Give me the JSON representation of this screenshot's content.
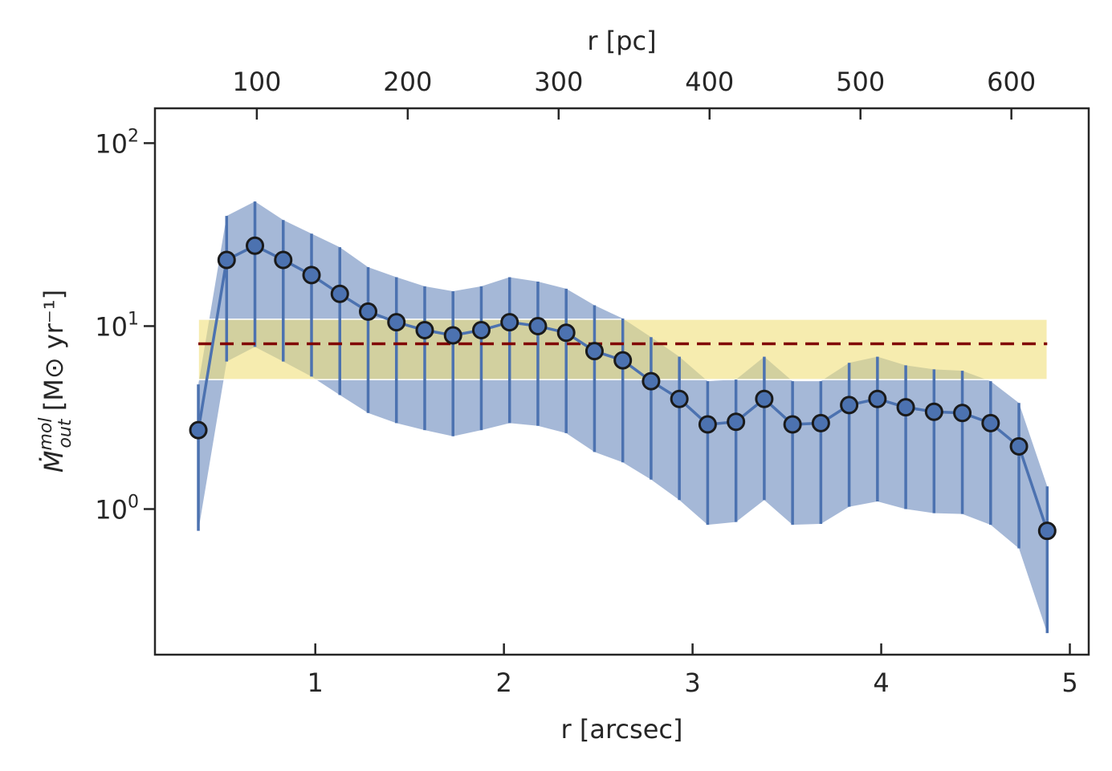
{
  "chart_data": {
    "type": "line",
    "xlabel": "r [arcsec]",
    "xlabel_top": "r [pc]",
    "ylabel_text": "Ṁ",
    "ylabel_sup": "mol",
    "ylabel_sub": "out",
    "ylabel_unit": " [M⊙ yr⁻¹]",
    "yscale": "log",
    "xlim": [
      0.15,
      5.1
    ],
    "ylim": [
      0.16,
      155
    ],
    "x_ticks": [
      {
        "value": 1,
        "label": "1"
      },
      {
        "value": 2,
        "label": "2"
      },
      {
        "value": 3,
        "label": "3"
      },
      {
        "value": 4,
        "label": "4"
      },
      {
        "value": 5,
        "label": "5"
      }
    ],
    "x_top_ticks": [
      {
        "value": 0.69,
        "label": "100"
      },
      {
        "value": 1.49,
        "label": "200"
      },
      {
        "value": 2.29,
        "label": "300"
      },
      {
        "value": 3.09,
        "label": "400"
      },
      {
        "value": 3.89,
        "label": "500"
      },
      {
        "value": 4.69,
        "label": "600"
      }
    ],
    "y_ticks": [
      {
        "value": 1,
        "base": "10",
        "exp": "0"
      },
      {
        "value": 10,
        "base": "10",
        "exp": "1"
      },
      {
        "value": 100,
        "base": "10",
        "exp": "2"
      }
    ],
    "series": [
      {
        "color": "#4c72b0",
        "x": [
          0.38,
          0.53,
          0.68,
          0.83,
          0.98,
          1.13,
          1.28,
          1.43,
          1.58,
          1.73,
          1.88,
          2.03,
          2.18,
          2.33,
          2.48,
          2.63,
          2.78,
          2.93,
          3.08,
          3.23,
          3.38,
          3.53,
          3.68,
          3.83,
          3.98,
          4.13,
          4.28,
          4.43,
          4.58,
          4.73,
          4.88
        ],
        "y": [
          2.7,
          23,
          27.5,
          23,
          19,
          15,
          12,
          10.5,
          9.5,
          8.9,
          9.5,
          10.5,
          10,
          9.2,
          7.3,
          6.5,
          5.0,
          4.0,
          2.9,
          3.0,
          4.0,
          2.9,
          2.95,
          3.7,
          4.0,
          3.6,
          3.4,
          3.35,
          2.95,
          2.2,
          0.76
        ],
        "y_upper": [
          4.8,
          40,
          48,
          38,
          32,
          27,
          21,
          18.5,
          16.5,
          15.5,
          16.5,
          18.5,
          17.5,
          16,
          13,
          11,
          8.7,
          6.8,
          5.0,
          5.1,
          6.8,
          5.0,
          5.0,
          6.3,
          6.8,
          6.1,
          5.8,
          5.7,
          5.0,
          3.8,
          1.33
        ],
        "y_lower": [
          0.76,
          6.4,
          7.7,
          6.4,
          5.3,
          4.2,
          3.35,
          2.95,
          2.7,
          2.5,
          2.7,
          2.95,
          2.85,
          2.6,
          2.05,
          1.8,
          1.45,
          1.12,
          0.82,
          0.85,
          1.12,
          0.82,
          0.83,
          1.03,
          1.1,
          1.0,
          0.95,
          0.94,
          0.82,
          0.61,
          0.21
        ]
      }
    ],
    "reference_line": {
      "y": 8.0,
      "color": "#800000",
      "x_range": [
        0.38,
        4.88
      ]
    },
    "reference_band": {
      "y_range": [
        5.1,
        10.9
      ],
      "x_range": [
        0.38,
        4.88
      ],
      "color": "#f0e07a"
    },
    "grid": false
  }
}
